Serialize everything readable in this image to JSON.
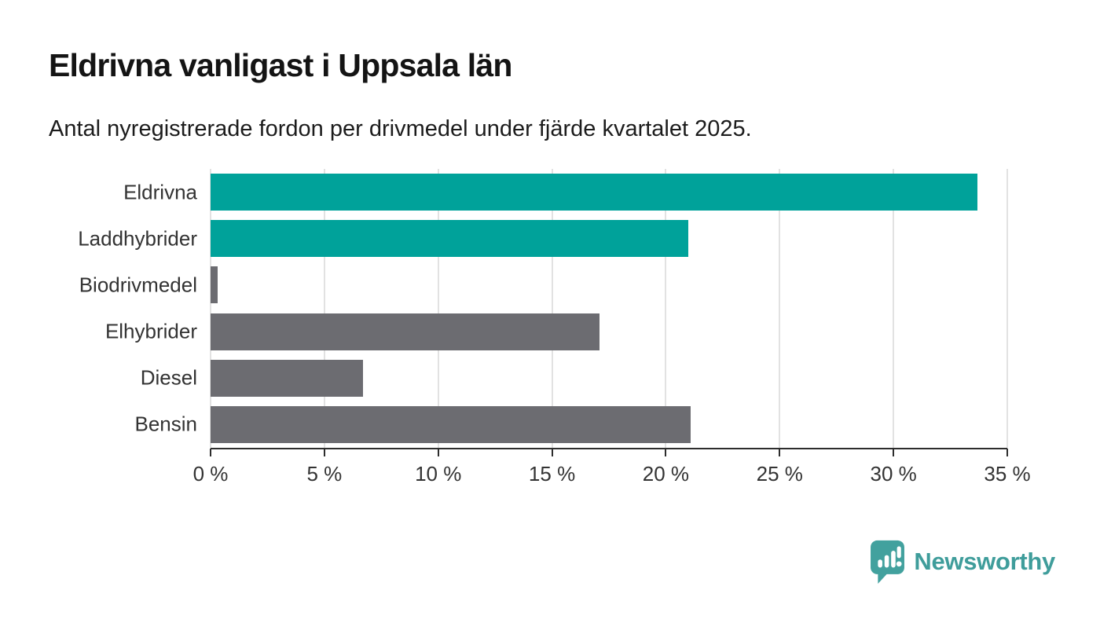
{
  "header": {
    "title": "Eldrivna vanligast i Uppsala län",
    "subtitle": "Antal nyregistrerade fordon per drivmedel under fjärde kvartalet 2025."
  },
  "chart_data": {
    "type": "bar",
    "orientation": "horizontal",
    "categories": [
      "Eldrivna",
      "Laddhybrider",
      "Biodrivmedel",
      "Elhybrider",
      "Diesel",
      "Bensin"
    ],
    "values": [
      33.7,
      21.0,
      0.3,
      17.1,
      6.7,
      21.1
    ],
    "unit": "%",
    "bar_colors": [
      "#00a29a",
      "#00a29a",
      "#6c6c71",
      "#6c6c71",
      "#6c6c71",
      "#6c6c71"
    ],
    "highlight_color": "#00a29a",
    "default_color": "#6c6c71",
    "title": "Eldrivna vanligast i Uppsala län",
    "xlabel": "",
    "ylabel": "",
    "xlim": [
      0,
      35
    ],
    "x_ticks": [
      0,
      5,
      10,
      15,
      20,
      25,
      30,
      35
    ],
    "x_tick_labels": [
      "0 %",
      "5 %",
      "10 %",
      "15 %",
      "20 %",
      "25 %",
      "30 %",
      "35 %"
    ],
    "grid": "vertical",
    "legend": "none"
  },
  "footer": {
    "brand": "Newsworthy",
    "brand_color": "#3f9d9b",
    "logo_icon": "bar-chart-speech-bubble-icon",
    "logo_color": "#42a19e"
  }
}
